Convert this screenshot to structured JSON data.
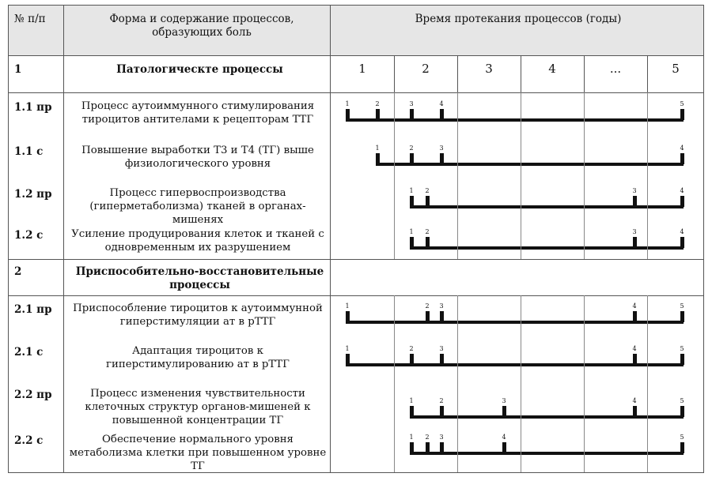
{
  "header": {
    "col_num": "№ п/п",
    "col_process": "Форма и содержание процессов, образующих боль",
    "col_time": "Время протекания процессов (годы)"
  },
  "years": [
    "1",
    "2",
    "3",
    "4",
    "...",
    "5"
  ],
  "sections": [
    {
      "num": "1",
      "title": "Патологическте процессы"
    },
    {
      "num": "2",
      "title": "Приспособительно-восстановительные процессы"
    }
  ],
  "rows": [
    {
      "num": "1.1 пр",
      "text": "Процесс аутоиммунного стимулирования тироцитов антителами к рецепторам ТТГ",
      "ticks": [
        {
          "label": "1",
          "col": 0.0
        },
        {
          "label": "2",
          "col": 0.5
        },
        {
          "label": "3",
          "col": 1.05
        },
        {
          "label": "4",
          "col": 1.5
        },
        {
          "label": "5",
          "col": 5.5
        }
      ]
    },
    {
      "num": "1.1 с",
      "text": "Повышение выработки Т3 и Т4 (ТГ) выше физиологического уровня",
      "ticks": [
        {
          "label": "1",
          "col": 0.5
        },
        {
          "label": "2",
          "col": 1.05
        },
        {
          "label": "3",
          "col": 1.5
        },
        {
          "label": "4",
          "col": 5.5
        }
      ]
    },
    {
      "num": "1.2 пр",
      "text": "Процесс гипервоспроизводства (гиперметаболизма) тканей в органах-мишенях",
      "ticks": [
        {
          "label": "1",
          "col": 1.05
        },
        {
          "label": "2",
          "col": 1.3
        },
        {
          "label": "3",
          "col": 4.8
        },
        {
          "label": "4",
          "col": 5.5
        }
      ]
    },
    {
      "num": "1.2 с",
      "text": "Усиление продуцирования клеток и тканей с одновременным их разрушением",
      "ticks": [
        {
          "label": "1",
          "col": 1.05
        },
        {
          "label": "2",
          "col": 1.3
        },
        {
          "label": "3",
          "col": 4.8
        },
        {
          "label": "4",
          "col": 5.5
        }
      ]
    },
    {
      "num": "2.1 пр",
      "text": "Приспособление тироцитов к аутоиммунной гиперстимуляции ат в рТТГ",
      "ticks": [
        {
          "label": "1",
          "col": 0.0
        },
        {
          "label": "2",
          "col": 1.3
        },
        {
          "label": "3",
          "col": 1.5
        },
        {
          "label": "4",
          "col": 4.8
        },
        {
          "label": "5",
          "col": 5.5
        }
      ]
    },
    {
      "num": "2.1 с",
      "text": "Адаптация тироцитов к гиперстимулированию ат в рТТГ",
      "ticks": [
        {
          "label": "1",
          "col": 0.0
        },
        {
          "label": "2",
          "col": 1.05
        },
        {
          "label": "3",
          "col": 1.5
        },
        {
          "label": "4",
          "col": 4.8
        },
        {
          "label": "5",
          "col": 5.5
        }
      ]
    },
    {
      "num": "2.2 пр",
      "text": "Процесс изменения чувствительности клеточных структур органов-мишеней к повышенной концентрации ТГ",
      "ticks": [
        {
          "label": "1",
          "col": 1.05
        },
        {
          "label": "2",
          "col": 1.5
        },
        {
          "label": "3",
          "col": 2.75
        },
        {
          "label": "4",
          "col": 4.8
        },
        {
          "label": "5",
          "col": 5.5
        }
      ]
    },
    {
      "num": "2.2 с",
      "text": "Обеспечение нормального уровня метаболизма клетки при повышенном уровне ТГ",
      "ticks": [
        {
          "label": "1",
          "col": 1.05
        },
        {
          "label": "2",
          "col": 1.3
        },
        {
          "label": "3",
          "col": 1.5
        },
        {
          "label": "4",
          "col": 2.75
        },
        {
          "label": "5",
          "col": 5.5
        }
      ]
    }
  ]
}
